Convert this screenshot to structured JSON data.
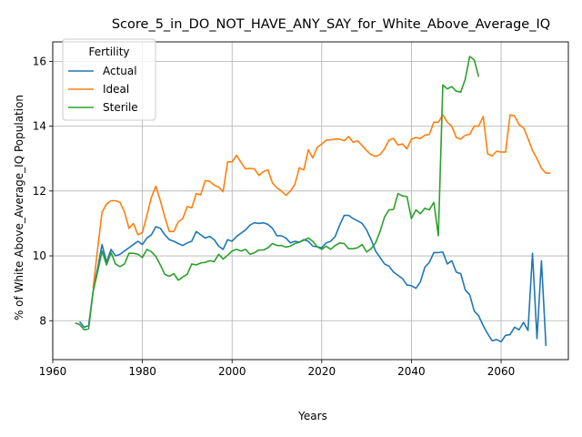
{
  "chart_data": {
    "type": "line",
    "title": "Score_5_in_DO_NOT_HAVE_ANY_SAY_for_White_Above_Average_IQ",
    "xlabel": "Years",
    "ylabel": "% of White Above_Average_IQ Population",
    "xlim": [
      1960,
      2075
    ],
    "ylim": [
      6.8,
      16.6
    ],
    "xticks": [
      1960,
      1980,
      2000,
      2020,
      2040,
      2060
    ],
    "yticks": [
      8,
      10,
      12,
      14,
      16
    ],
    "grid": true,
    "legend": {
      "title": "Fertility",
      "position": "top-left"
    },
    "series": [
      {
        "name": "Actual",
        "color": "#1f77b4",
        "points": [
          [
            1966,
            7.97
          ],
          [
            1967,
            7.8
          ],
          [
            1968,
            7.85
          ],
          [
            1969,
            8.9
          ],
          [
            1970,
            9.6
          ],
          [
            1971,
            10.35
          ],
          [
            1972,
            9.8
          ],
          [
            1973,
            10.2
          ],
          [
            1974,
            10.0
          ],
          [
            1975,
            10.05
          ],
          [
            1976,
            10.15
          ],
          [
            1977,
            10.25
          ],
          [
            1978,
            10.35
          ],
          [
            1979,
            10.45
          ],
          [
            1980,
            10.35
          ],
          [
            1981,
            10.55
          ],
          [
            1982,
            10.65
          ],
          [
            1983,
            10.9
          ],
          [
            1984,
            10.85
          ],
          [
            1985,
            10.65
          ],
          [
            1986,
            10.5
          ],
          [
            1987,
            10.45
          ],
          [
            1988,
            10.38
          ],
          [
            1989,
            10.32
          ],
          [
            1990,
            10.4
          ],
          [
            1991,
            10.45
          ],
          [
            1992,
            10.75
          ],
          [
            1993,
            10.65
          ],
          [
            1994,
            10.55
          ],
          [
            1995,
            10.6
          ],
          [
            1996,
            10.5
          ],
          [
            1997,
            10.3
          ],
          [
            1998,
            10.2
          ],
          [
            1999,
            10.5
          ],
          [
            2000,
            10.45
          ],
          [
            2001,
            10.6
          ],
          [
            2002,
            10.7
          ],
          [
            2003,
            10.8
          ],
          [
            2004,
            10.95
          ],
          [
            2005,
            11.02
          ],
          [
            2006,
            11.0
          ],
          [
            2007,
            11.02
          ],
          [
            2008,
            10.97
          ],
          [
            2009,
            10.85
          ],
          [
            2010,
            10.62
          ],
          [
            2011,
            10.62
          ],
          [
            2012,
            10.55
          ],
          [
            2013,
            10.4
          ],
          [
            2014,
            10.45
          ],
          [
            2015,
            10.42
          ],
          [
            2016,
            10.5
          ],
          [
            2017,
            10.45
          ],
          [
            2018,
            10.3
          ],
          [
            2019,
            10.28
          ],
          [
            2020,
            10.25
          ],
          [
            2021,
            10.4
          ],
          [
            2022,
            10.45
          ],
          [
            2023,
            10.6
          ],
          [
            2024,
            10.95
          ],
          [
            2025,
            11.25
          ],
          [
            2026,
            11.25
          ],
          [
            2027,
            11.15
          ],
          [
            2028,
            11.08
          ],
          [
            2029,
            11.0
          ],
          [
            2030,
            10.8
          ],
          [
            2031,
            10.5
          ],
          [
            2032,
            10.15
          ],
          [
            2033,
            9.95
          ],
          [
            2034,
            9.75
          ],
          [
            2035,
            9.68
          ],
          [
            2036,
            9.5
          ],
          [
            2037,
            9.4
          ],
          [
            2038,
            9.3
          ],
          [
            2039,
            9.1
          ],
          [
            2040,
            9.08
          ],
          [
            2041,
            9.0
          ],
          [
            2042,
            9.2
          ],
          [
            2043,
            9.65
          ],
          [
            2044,
            9.8
          ],
          [
            2045,
            10.1
          ],
          [
            2046,
            10.1
          ],
          [
            2047,
            10.12
          ],
          [
            2048,
            9.75
          ],
          [
            2049,
            9.85
          ],
          [
            2050,
            9.5
          ],
          [
            2051,
            9.45
          ],
          [
            2052,
            8.95
          ],
          [
            2053,
            8.8
          ],
          [
            2054,
            8.3
          ],
          [
            2055,
            8.15
          ],
          [
            2056,
            7.85
          ],
          [
            2057,
            7.6
          ],
          [
            2058,
            7.38
          ],
          [
            2059,
            7.42
          ],
          [
            2060,
            7.35
          ],
          [
            2061,
            7.55
          ],
          [
            2062,
            7.57
          ],
          [
            2063,
            7.8
          ],
          [
            2064,
            7.72
          ],
          [
            2065,
            7.95
          ],
          [
            2066,
            7.7
          ],
          [
            2067,
            10.08
          ],
          [
            2068,
            7.45
          ],
          [
            2069,
            9.85
          ],
          [
            2070,
            7.22
          ]
        ]
      },
      {
        "name": "Ideal",
        "color": "#ff7f0e",
        "points": [
          [
            1969,
            9.0
          ],
          [
            1970,
            10.2
          ],
          [
            1971,
            11.35
          ],
          [
            1972,
            11.6
          ],
          [
            1973,
            11.7
          ],
          [
            1974,
            11.7
          ],
          [
            1975,
            11.65
          ],
          [
            1976,
            11.35
          ],
          [
            1977,
            10.85
          ],
          [
            1978,
            11.0
          ],
          [
            1979,
            10.65
          ],
          [
            1980,
            10.72
          ],
          [
            1981,
            11.25
          ],
          [
            1982,
            11.8
          ],
          [
            1983,
            12.15
          ],
          [
            1984,
            11.7
          ],
          [
            1985,
            11.2
          ],
          [
            1986,
            10.75
          ],
          [
            1987,
            10.75
          ],
          [
            1988,
            11.05
          ],
          [
            1989,
            11.15
          ],
          [
            1990,
            11.52
          ],
          [
            1991,
            11.48
          ],
          [
            1992,
            11.92
          ],
          [
            1993,
            11.88
          ],
          [
            1994,
            12.32
          ],
          [
            1995,
            12.3
          ],
          [
            1996,
            12.18
          ],
          [
            1997,
            12.12
          ],
          [
            1998,
            11.98
          ],
          [
            1999,
            12.9
          ],
          [
            2000,
            12.9
          ],
          [
            2001,
            13.1
          ],
          [
            2002,
            12.88
          ],
          [
            2003,
            12.68
          ],
          [
            2004,
            12.7
          ],
          [
            2005,
            12.68
          ],
          [
            2006,
            12.48
          ],
          [
            2007,
            12.6
          ],
          [
            2008,
            12.65
          ],
          [
            2009,
            12.25
          ],
          [
            2010,
            12.1
          ],
          [
            2011,
            12.0
          ],
          [
            2012,
            11.87
          ],
          [
            2013,
            12.0
          ],
          [
            2014,
            12.2
          ],
          [
            2015,
            12.72
          ],
          [
            2016,
            12.65
          ],
          [
            2017,
            13.27
          ],
          [
            2018,
            13.02
          ],
          [
            2019,
            13.35
          ],
          [
            2020,
            13.45
          ],
          [
            2021,
            13.57
          ],
          [
            2022,
            13.58
          ],
          [
            2023,
            13.6
          ],
          [
            2024,
            13.6
          ],
          [
            2025,
            13.55
          ],
          [
            2026,
            13.68
          ],
          [
            2027,
            13.5
          ],
          [
            2028,
            13.55
          ],
          [
            2029,
            13.4
          ],
          [
            2030,
            13.25
          ],
          [
            2031,
            13.12
          ],
          [
            2032,
            13.07
          ],
          [
            2033,
            13.12
          ],
          [
            2034,
            13.3
          ],
          [
            2035,
            13.57
          ],
          [
            2036,
            13.62
          ],
          [
            2037,
            13.42
          ],
          [
            2038,
            13.45
          ],
          [
            2039,
            13.3
          ],
          [
            2040,
            13.6
          ],
          [
            2041,
            13.65
          ],
          [
            2042,
            13.62
          ],
          [
            2043,
            13.72
          ],
          [
            2044,
            13.75
          ],
          [
            2045,
            14.12
          ],
          [
            2046,
            14.12
          ],
          [
            2047,
            14.35
          ],
          [
            2048,
            14.12
          ],
          [
            2049,
            14.0
          ],
          [
            2050,
            13.65
          ],
          [
            2051,
            13.6
          ],
          [
            2052,
            13.72
          ],
          [
            2053,
            13.75
          ],
          [
            2054,
            14.0
          ],
          [
            2055,
            14.0
          ],
          [
            2056,
            14.3
          ],
          [
            2057,
            13.15
          ],
          [
            2058,
            13.08
          ],
          [
            2059,
            13.23
          ],
          [
            2060,
            13.2
          ],
          [
            2061,
            13.2
          ],
          [
            2062,
            14.35
          ],
          [
            2063,
            14.32
          ],
          [
            2064,
            14.05
          ],
          [
            2065,
            13.95
          ],
          [
            2066,
            13.62
          ],
          [
            2067,
            13.25
          ],
          [
            2068,
            13.0
          ],
          [
            2069,
            12.7
          ],
          [
            2070,
            12.55
          ],
          [
            2071,
            12.55
          ]
        ]
      },
      {
        "name": "Sterile",
        "color": "#2ca02c",
        "points": [
          [
            1965,
            7.93
          ],
          [
            1966,
            7.88
          ],
          [
            1967,
            7.72
          ],
          [
            1968,
            7.75
          ],
          [
            1969,
            8.9
          ],
          [
            1970,
            9.5
          ],
          [
            1971,
            10.15
          ],
          [
            1972,
            9.72
          ],
          [
            1973,
            10.1
          ],
          [
            1974,
            9.75
          ],
          [
            1975,
            9.67
          ],
          [
            1976,
            9.75
          ],
          [
            1977,
            10.08
          ],
          [
            1978,
            10.08
          ],
          [
            1979,
            10.05
          ],
          [
            1980,
            9.95
          ],
          [
            1981,
            10.2
          ],
          [
            1982,
            10.13
          ],
          [
            1983,
            9.98
          ],
          [
            1984,
            9.72
          ],
          [
            1985,
            9.43
          ],
          [
            1986,
            9.37
          ],
          [
            1987,
            9.45
          ],
          [
            1988,
            9.25
          ],
          [
            1989,
            9.35
          ],
          [
            1990,
            9.43
          ],
          [
            1991,
            9.75
          ],
          [
            1992,
            9.72
          ],
          [
            1993,
            9.78
          ],
          [
            1994,
            9.8
          ],
          [
            1995,
            9.85
          ],
          [
            1996,
            9.82
          ],
          [
            1997,
            10.05
          ],
          [
            1998,
            9.9
          ],
          [
            1999,
            10.02
          ],
          [
            2000,
            10.15
          ],
          [
            2001,
            10.2
          ],
          [
            2002,
            10.15
          ],
          [
            2003,
            10.2
          ],
          [
            2004,
            10.05
          ],
          [
            2005,
            10.1
          ],
          [
            2006,
            10.18
          ],
          [
            2007,
            10.18
          ],
          [
            2008,
            10.25
          ],
          [
            2009,
            10.38
          ],
          [
            2010,
            10.32
          ],
          [
            2011,
            10.32
          ],
          [
            2012,
            10.27
          ],
          [
            2013,
            10.3
          ],
          [
            2014,
            10.38
          ],
          [
            2015,
            10.42
          ],
          [
            2016,
            10.48
          ],
          [
            2017,
            10.55
          ],
          [
            2018,
            10.45
          ],
          [
            2019,
            10.28
          ],
          [
            2020,
            10.2
          ],
          [
            2021,
            10.3
          ],
          [
            2022,
            10.2
          ],
          [
            2023,
            10.32
          ],
          [
            2024,
            10.4
          ],
          [
            2025,
            10.38
          ],
          [
            2026,
            10.22
          ],
          [
            2027,
            10.22
          ],
          [
            2028,
            10.25
          ],
          [
            2029,
            10.35
          ],
          [
            2030,
            10.12
          ],
          [
            2031,
            10.22
          ],
          [
            2032,
            10.4
          ],
          [
            2033,
            10.75
          ],
          [
            2034,
            11.2
          ],
          [
            2035,
            11.42
          ],
          [
            2036,
            11.43
          ],
          [
            2037,
            11.92
          ],
          [
            2038,
            11.85
          ],
          [
            2039,
            11.83
          ],
          [
            2040,
            11.15
          ],
          [
            2041,
            11.42
          ],
          [
            2042,
            11.3
          ],
          [
            2043,
            11.47
          ],
          [
            2044,
            11.42
          ],
          [
            2045,
            11.65
          ],
          [
            2046,
            10.62
          ],
          [
            2047,
            15.27
          ],
          [
            2048,
            15.15
          ],
          [
            2049,
            15.22
          ],
          [
            2050,
            15.08
          ],
          [
            2051,
            15.05
          ],
          [
            2052,
            15.45
          ],
          [
            2053,
            16.15
          ],
          [
            2054,
            16.05
          ],
          [
            2055,
            15.52
          ]
        ]
      }
    ]
  }
}
